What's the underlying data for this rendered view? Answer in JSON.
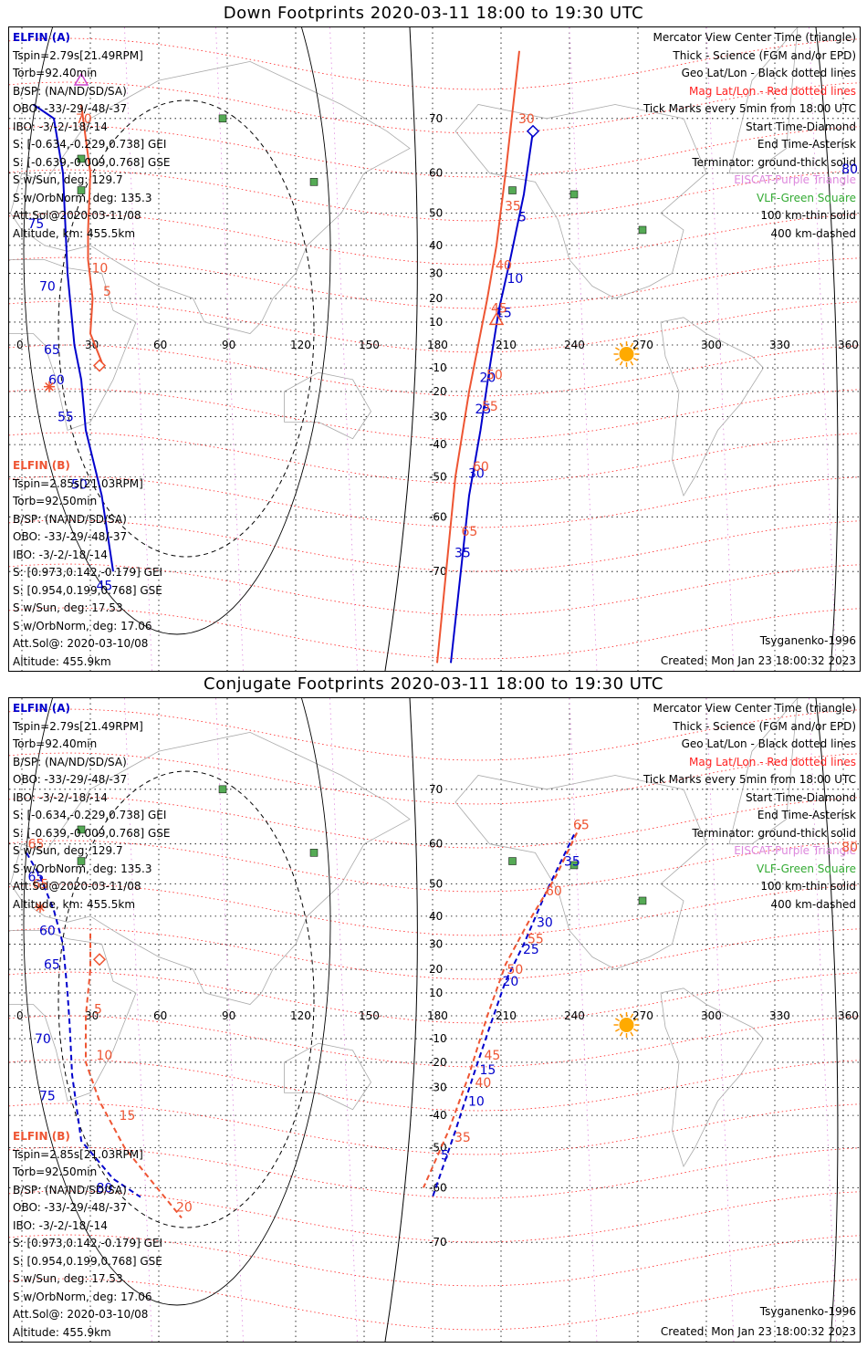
{
  "down": {
    "title": "Down Footprints 2020-03-11 18:00 to 19:30 UTC",
    "elfin_a": {
      "label": "ELFIN (A)",
      "lines": [
        "Tspin=2.79s[21.49RPM]",
        "Torb=92.40min",
        "B/SP: (NA/ND/SD/SA)",
        "OBO: -33/-29/-48/-37",
        "IBO: -3/-2/-18/-14",
        "S: [-0.634,-0.229,0.738] GEI",
        "S: [-0.639,-0.009,0.768] GSE",
        "S w/Sun, deg: 129.7",
        "S w/OrbNorm, deg: 135.3",
        "Att.Sol@2020-03-11/08",
        "Altitude, km: 455.5km"
      ]
    },
    "elfin_b": {
      "label": "ELFIN (B)",
      "lines": [
        "Tspin=2.85s[21.03RPM]",
        "Torb=92.50min",
        "B/SP: (NA/ND/SD/SA)",
        "OBO: -33/-29/-48/-37",
        "IBO: -3/-2/-18/-14",
        "S: [0.973,0.142,-0.179] GEI",
        "S: [0.954,0.199,0.768] GSE",
        "S w/Sun, deg: 17.53",
        "S w/OrbNorm, deg: 17.06",
        "Att.Sol@: 2020-03-10/08",
        "Altitude: 455.9km"
      ]
    },
    "legend": [
      {
        "text": "Mercator View Center Time (triangle)",
        "color": "#000000"
      },
      {
        "text": "Thick - Science (FGM and/or EPD)",
        "color": "#000000"
      },
      {
        "text": "Geo Lat/Lon - Black dotted lines",
        "color": "#000000"
      },
      {
        "text": "Mag Lat/Lon - Red dotted lines",
        "color": "#ff2222"
      },
      {
        "text": "Tick Marks every 5min from 18:00 UTC",
        "color": "#000000"
      },
      {
        "text": "Start Time-Diamond",
        "color": "#000000"
      },
      {
        "text": "End Time-Asterisk",
        "color": "#000000"
      },
      {
        "text": "Terminator: ground-thick solid",
        "color": "#000000"
      },
      {
        "text": "EISCAT-Purple Triangle",
        "color": "#dd88dd"
      },
      {
        "text": "VLF-Green Square",
        "color": "#33aa33"
      },
      {
        "text": "100 km-thin solid",
        "color": "#000000"
      },
      {
        "text": "400 km-dashed",
        "color": "#000000"
      }
    ],
    "model": "Tsyganenko-1996",
    "created": "Created: Mon Jan 23 18:00:32 2023",
    "edge_label": "80"
  },
  "conj": {
    "title": "Conjugate Footprints 2020-03-11 18:00 to 19:30 UTC",
    "elfin_a": {
      "label": "ELFIN (A)",
      "lines": [
        "Tspin=2.79s[21.49RPM]",
        "Torb=92.40min",
        "B/SP: (NA/ND/SD/SA)",
        "OBO: -33/-29/-48/-37",
        "IBO: -3/-2/-18/-14",
        "S: [-0.634,-0.229,0.738] GEI",
        "S: [-0.639,-0.009,0.768] GSE",
        "S w/Sun, deg: 129.7",
        "S w/OrbNorm, deg: 135.3",
        "Att.Sol@2020-03-11/08",
        "Altitude, km: 455.5km"
      ]
    },
    "elfin_b": {
      "label": "ELFIN (B)",
      "lines": [
        "Tspin=2.85s[21.03RPM]",
        "Torb=92.50min",
        "B/SP: (NA/ND/SD/SA)",
        "OBO: -33/-29/-48/-37",
        "IBO: -3/-2/-18/-14",
        "S: [0.973,0.142,-0.179] GEI",
        "S: [0.954,0.199,0.768] GSE",
        "S w/Sun, deg: 17.53",
        "S w/OrbNorm, deg: 17.06",
        "Att.Sol@: 2020-03-10/08",
        "Altitude: 455.9km"
      ]
    },
    "legend": [
      {
        "text": "Mercator View Center Time (triangle)",
        "color": "#000000"
      },
      {
        "text": "Thick - Science (FGM and/or EPD)",
        "color": "#000000"
      },
      {
        "text": "Geo Lat/Lon - Black dotted lines",
        "color": "#000000"
      },
      {
        "text": "Mag Lat/Lon - Red dotted lines",
        "color": "#ff2222"
      },
      {
        "text": "Tick Marks every 5min from 18:00 UTC",
        "color": "#000000"
      },
      {
        "text": "Start Time-Diamond",
        "color": "#000000"
      },
      {
        "text": "End Time-Asterisk",
        "color": "#000000"
      },
      {
        "text": "Terminator: ground-thick solid",
        "color": "#000000"
      },
      {
        "text": "EISCAT-Purple Triangle",
        "color": "#dd88dd"
      },
      {
        "text": "VLF-Green Square",
        "color": "#33aa33"
      },
      {
        "text": "100 km-thin solid",
        "color": "#000000"
      },
      {
        "text": "400 km-dashed",
        "color": "#000000"
      }
    ],
    "model": "Tsyganenko-1996",
    "created": "Created: Mon Jan 23 18:00:32 2023",
    "edge_label": "80"
  },
  "map": {
    "lon_ticks": [
      0,
      30,
      60,
      90,
      120,
      150,
      180,
      210,
      240,
      270,
      300,
      330,
      360
    ],
    "lat_ticks": [
      70,
      60,
      50,
      40,
      30,
      20,
      10,
      -10,
      -20,
      -30,
      -40,
      -50,
      -60,
      -70
    ],
    "sun_lon": 265,
    "sun_lat": -4
  },
  "tracks": {
    "down_a": {
      "color": "#0000cc",
      "points": [
        [
          5,
          72
        ],
        [
          14,
          70
        ],
        [
          18,
          60
        ],
        [
          20,
          30
        ],
        [
          23,
          0
        ],
        [
          26,
          -15
        ],
        [
          28,
          -35
        ],
        [
          35,
          -55
        ],
        [
          40,
          -70
        ]
      ],
      "ticks": [
        {
          "t": "75",
          "lon": 5,
          "lat": 47
        },
        {
          "t": "70",
          "lon": 10,
          "lat": 25
        },
        {
          "t": "65",
          "lon": 12,
          "lat": -2
        },
        {
          "t": "60",
          "lon": 14,
          "lat": -15
        },
        {
          "t": "55",
          "lon": 18,
          "lat": -30
        },
        {
          "t": "50",
          "lon": 24,
          "lat": -52
        },
        {
          "t": "45",
          "lon": 35,
          "lat": -72
        }
      ]
    },
    "down_a2": {
      "color": "#0000cc",
      "points": [
        [
          224,
          68
        ],
        [
          220,
          55
        ],
        [
          214,
          35
        ],
        [
          209,
          15
        ],
        [
          205,
          -10
        ],
        [
          201,
          -35
        ],
        [
          196,
          -55
        ],
        [
          188,
          -80
        ]
      ],
      "ticks": [
        {
          "t": "5",
          "lon": 220,
          "lat": 49
        },
        {
          "t": "10",
          "lon": 215,
          "lat": 28
        },
        {
          "t": "15",
          "lon": 210,
          "lat": 14
        },
        {
          "t": "20",
          "lon": 203,
          "lat": -14
        },
        {
          "t": "25",
          "lon": 201,
          "lat": -27
        },
        {
          "t": "30",
          "lon": 198,
          "lat": -49
        },
        {
          "t": "35",
          "lon": 192,
          "lat": -67
        }
      ]
    },
    "down_b": {
      "color": "#ee5533",
      "points": [
        [
          26,
          72
        ],
        [
          30,
          60
        ],
        [
          29,
          45
        ],
        [
          29,
          35
        ],
        [
          31,
          20
        ],
        [
          30,
          5
        ],
        [
          34,
          -5
        ],
        [
          36,
          -10
        ]
      ],
      "ticks": [
        {
          "t": "10",
          "lon": 33,
          "lat": 32
        },
        {
          "t": "5",
          "lon": 38,
          "lat": 23
        },
        {
          "t": "70",
          "lon": 26,
          "lat": 70
        }
      ]
    },
    "down_b2": {
      "color": "#ee5533",
      "points": [
        [
          218,
          78
        ],
        [
          212,
          60
        ],
        [
          208,
          40
        ],
        [
          204,
          20
        ],
        [
          200,
          0
        ],
        [
          196,
          -20
        ],
        [
          190,
          -50
        ],
        [
          182,
          -80
        ]
      ],
      "ticks": [
        {
          "t": "30",
          "lon": 220,
          "lat": 70
        },
        {
          "t": "35",
          "lon": 214,
          "lat": 52
        },
        {
          "t": "40",
          "lon": 210,
          "lat": 33
        },
        {
          "t": "45",
          "lon": 208,
          "lat": 16
        },
        {
          "t": "50",
          "lon": 206,
          "lat": -13
        },
        {
          "t": "55",
          "lon": 204,
          "lat": -26
        },
        {
          "t": "60",
          "lon": 200,
          "lat": -47
        },
        {
          "t": "65",
          "lon": 195,
          "lat": -63
        }
      ]
    },
    "conj_a2": {
      "color": "#0000cc",
      "points": [
        [
          242,
          62
        ],
        [
          230,
          48
        ],
        [
          220,
          30
        ],
        [
          212,
          15
        ],
        [
          205,
          -5
        ],
        [
          198,
          -25
        ],
        [
          190,
          -45
        ],
        [
          180,
          -62
        ]
      ],
      "ticks": [
        {
          "t": "35",
          "lon": 240,
          "lat": 56
        },
        {
          "t": "30",
          "lon": 228,
          "lat": 38
        },
        {
          "t": "25",
          "lon": 222,
          "lat": 28
        },
        {
          "t": "20",
          "lon": 213,
          "lat": 15
        },
        {
          "t": "15",
          "lon": 203,
          "lat": -23
        },
        {
          "t": "10",
          "lon": 198,
          "lat": -35
        },
        {
          "t": "5",
          "lon": 186,
          "lat": -52
        }
      ]
    },
    "conj_b2": {
      "color": "#ee5533",
      "points": [
        [
          245,
          64
        ],
        [
          234,
          52
        ],
        [
          222,
          38
        ],
        [
          212,
          22
        ],
        [
          204,
          0
        ],
        [
          196,
          -25
        ],
        [
          187,
          -45
        ],
        [
          176,
          -60
        ]
      ],
      "ticks": [
        {
          "t": "65",
          "lon": 244,
          "lat": 64
        },
        {
          "t": "60",
          "lon": 232,
          "lat": 48
        },
        {
          "t": "55",
          "lon": 224,
          "lat": 32
        },
        {
          "t": "50",
          "lon": 215,
          "lat": 20
        },
        {
          "t": "45",
          "lon": 205,
          "lat": -17
        },
        {
          "t": "40",
          "lon": 201,
          "lat": -28
        },
        {
          "t": "35",
          "lon": 192,
          "lat": -47
        }
      ]
    },
    "conj_a": {
      "color": "#0000cc",
      "points": [
        [
          2,
          58
        ],
        [
          8,
          52
        ],
        [
          14,
          42
        ],
        [
          18,
          30
        ],
        [
          20,
          10
        ],
        [
          21,
          -5
        ],
        [
          22,
          -25
        ],
        [
          26,
          -48
        ],
        [
          40,
          -58
        ],
        [
          52,
          -62
        ]
      ],
      "ticks": [
        {
          "t": "65",
          "lon": 5,
          "lat": 52
        },
        {
          "t": "60",
          "lon": 10,
          "lat": 35
        },
        {
          "t": "65",
          "lon": 12,
          "lat": 22
        },
        {
          "t": "70",
          "lon": 8,
          "lat": -10
        },
        {
          "t": "75",
          "lon": 10,
          "lat": -33
        },
        {
          "t": "80",
          "lon": 35,
          "lat": -60
        }
      ]
    },
    "conj_b": {
      "color": "#ee5533",
      "points": [
        [
          30,
          34
        ],
        [
          30,
          20
        ],
        [
          28,
          0
        ],
        [
          28,
          -20
        ],
        [
          34,
          -35
        ],
        [
          45,
          -50
        ],
        [
          56,
          -58
        ],
        [
          70,
          -66
        ]
      ],
      "ticks": [
        {
          "t": "5",
          "lon": 34,
          "lat": 3
        },
        {
          "t": "10",
          "lon": 35,
          "lat": -17
        },
        {
          "t": "15",
          "lon": 45,
          "lat": -40
        },
        {
          "t": "20",
          "lon": 70,
          "lat": -64
        },
        {
          "t": "65",
          "lon": 5,
          "lat": 60
        },
        {
          "t": "65",
          "lon": 7,
          "lat": 50
        }
      ]
    }
  },
  "vlf_stations": [
    [
      88,
      70
    ],
    [
      26,
      63
    ],
    [
      26,
      56
    ],
    [
      128,
      58
    ],
    [
      215,
      56
    ],
    [
      242,
      55
    ],
    [
      272,
      45
    ]
  ],
  "markers": {
    "down_a_start": {
      "lon": 224,
      "lat": 68
    },
    "down_b_start": {
      "lon": 34,
      "lat": -9
    },
    "down_a_end": {
      "lon": 12,
      "lat": -18
    },
    "down_a_tri": {
      "lon": 208,
      "lat": 11
    },
    "down_b_tri": {
      "lon": 26,
      "lat": 75
    },
    "conj_b_start": {
      "lon": 34,
      "lat": 24
    },
    "conj_a_end": {
      "lon": 8,
      "lat": 43
    }
  }
}
